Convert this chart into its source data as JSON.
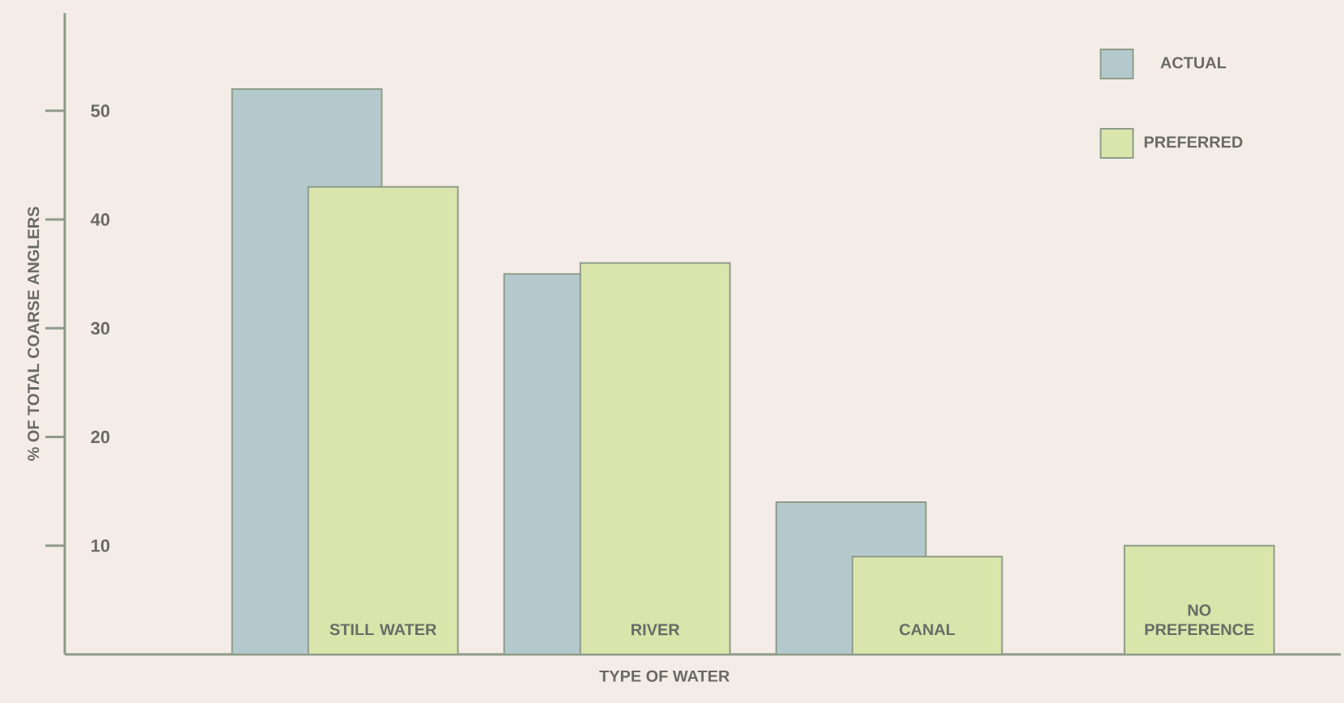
{
  "chart_data": {
    "type": "bar",
    "xlabel": "TYPE OF WATER",
    "ylabel": "% OF TOTAL COARSE ANGLERS",
    "categories": [
      "STILL WATER",
      "RIVER",
      "CANAL",
      "NO PREFERENCE"
    ],
    "series": [
      {
        "name": "ACTUAL",
        "color": "#b4c9cc",
        "values": [
          52,
          35,
          14,
          null
        ]
      },
      {
        "name": "PREFERRED",
        "color": "#d9e5ab",
        "values": [
          43,
          36,
          9,
          10
        ]
      }
    ],
    "ylim": [
      0,
      59
    ],
    "yticks": [
      10,
      20,
      30,
      40,
      50
    ],
    "legend": "top right"
  }
}
